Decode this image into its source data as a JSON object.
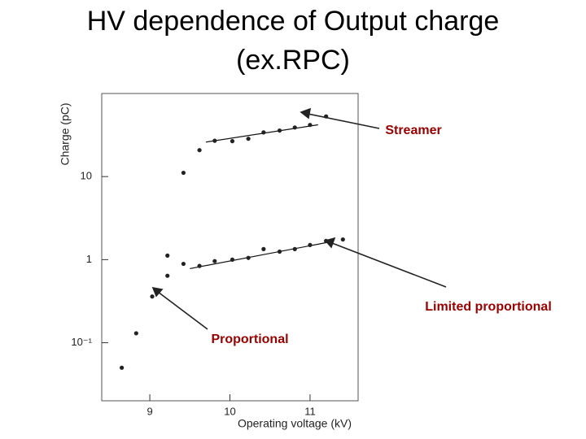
{
  "chart_data": {
    "type": "scatter",
    "title": [
      "HV dependence of Output charge",
      "(ex.RPC)"
    ],
    "x_label": "Operating voltage (kV)",
    "y_label": "Charge (pC)",
    "log_y": true,
    "xlim": [
      8.4,
      11.6
    ],
    "ylim": [
      0.02,
      100
    ],
    "xticks": [
      9,
      10,
      11
    ],
    "yticks": [
      {
        "value": 0.1,
        "label": "10⁻¹"
      },
      1,
      10
    ],
    "color": "#222222",
    "series": [
      {
        "x": [
          8.65,
          8.83,
          9.03,
          9.22,
          9.42,
          9.62,
          9.81,
          10.03,
          10.23,
          10.42,
          10.62,
          10.81,
          11.0,
          11.2,
          11.41
        ],
        "values": [
          0.05,
          0.13,
          0.36,
          0.64,
          0.89,
          0.84,
          0.96,
          1.0,
          1.05,
          1.34,
          1.25,
          1.34,
          1.5,
          1.68,
          1.75
        ]
      },
      {
        "x": [
          9.22,
          9.42,
          9.62,
          9.81,
          10.03,
          10.23,
          10.42,
          10.62,
          10.81,
          11.0,
          11.2
        ],
        "values": [
          1.12,
          11.1,
          20.8,
          27,
          26.7,
          28.5,
          34,
          35.8,
          39,
          41.8,
          53
        ]
      }
    ],
    "fit_lines": [
      {
        "x": [
          9.5,
          11.2
        ],
        "values": [
          0.78,
          1.6
        ]
      },
      {
        "x": [
          9.7,
          11.1
        ],
        "values": [
          26,
          42
        ]
      }
    ],
    "annotations": [
      "Streamer",
      "Limited proportional",
      "Proportional"
    ],
    "annotation_color": "#990000"
  }
}
